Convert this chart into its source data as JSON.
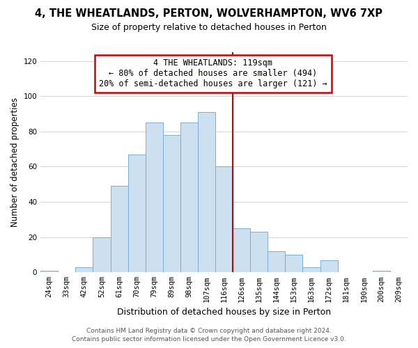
{
  "title": "4, THE WHEATLANDS, PERTON, WOLVERHAMPTON, WV6 7XP",
  "subtitle": "Size of property relative to detached houses in Perton",
  "xlabel": "Distribution of detached houses by size in Perton",
  "ylabel": "Number of detached properties",
  "bar_labels": [
    "24sqm",
    "33sqm",
    "42sqm",
    "52sqm",
    "61sqm",
    "70sqm",
    "79sqm",
    "89sqm",
    "98sqm",
    "107sqm",
    "116sqm",
    "126sqm",
    "135sqm",
    "144sqm",
    "153sqm",
    "163sqm",
    "172sqm",
    "181sqm",
    "190sqm",
    "200sqm",
    "209sqm"
  ],
  "bar_heights": [
    1,
    0,
    3,
    20,
    49,
    67,
    85,
    78,
    85,
    91,
    60,
    25,
    23,
    12,
    10,
    3,
    7,
    0,
    0,
    1,
    0
  ],
  "bar_color": "#cde0f0",
  "bar_edge_color": "#7ab0d4",
  "vline_color": "#cc0000",
  "annotation_title": "4 THE WHEATLANDS: 119sqm",
  "annotation_line1": "← 80% of detached houses are smaller (494)",
  "annotation_line2": "20% of semi-detached houses are larger (121) →",
  "annotation_box_color": "#ffffff",
  "annotation_box_edge": "#cc0000",
  "footer_line1": "Contains HM Land Registry data © Crown copyright and database right 2024.",
  "footer_line2": "Contains public sector information licensed under the Open Government Licence v3.0.",
  "ylim": [
    0,
    125
  ],
  "yticks": [
    0,
    20,
    40,
    60,
    80,
    100,
    120
  ],
  "background_color": "#ffffff",
  "grid_color": "#cccccc",
  "title_fontsize": 10.5,
  "subtitle_fontsize": 9,
  "tick_fontsize": 7.5,
  "ylabel_fontsize": 8.5,
  "xlabel_fontsize": 9,
  "annot_fontsize": 8.5,
  "footer_fontsize": 6.5
}
